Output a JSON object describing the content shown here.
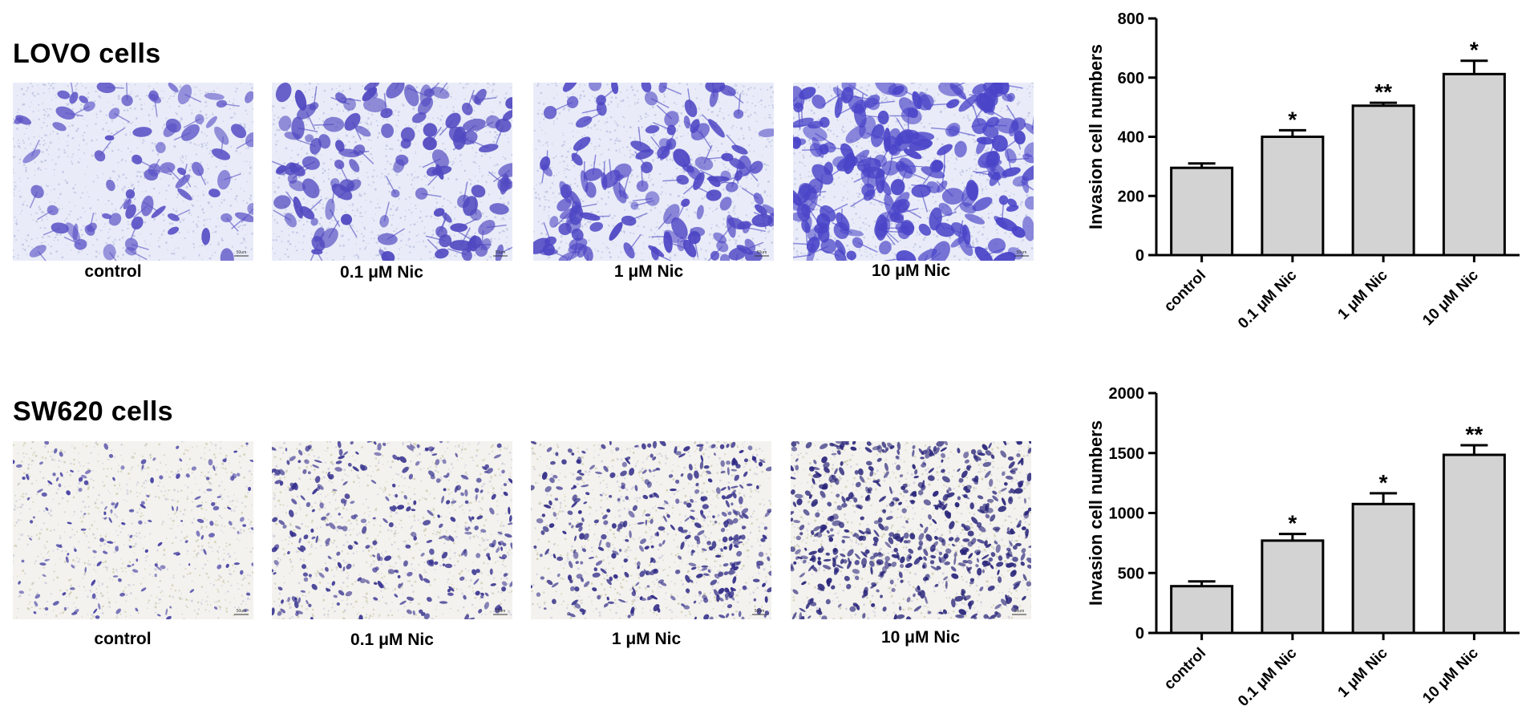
{
  "panels": [
    {
      "title": "LOVO cells",
      "images": [
        {
          "label": "control",
          "scale_label": "50um",
          "density": 70,
          "blob": 9,
          "stain": "#5b52c6"
        },
        {
          "label": "0.1 μM Nic",
          "scale_label": "50um",
          "density": 110,
          "blob": 10,
          "stain": "#5048c0"
        },
        {
          "label": "1 μM Nic",
          "scale_label": "50um",
          "density": 120,
          "blob": 10,
          "stain": "#4e46c4"
        },
        {
          "label": "10 μM Nic",
          "scale_label": "50um",
          "density": 190,
          "blob": 11,
          "stain": "#4a44c8"
        }
      ]
    },
    {
      "title": "SW620 cells",
      "images": [
        {
          "label": "control",
          "scale_label": "50um",
          "density": 160,
          "blob": 3,
          "stain": "#3f3aa0"
        },
        {
          "label": "0.1 μM Nic",
          "scale_label": "50um",
          "density": 300,
          "blob": 3.5,
          "stain": "#37328f"
        },
        {
          "label": "1 μM Nic",
          "scale_label": "50um",
          "density": 380,
          "blob": 3.5,
          "stain": "#2f2a86"
        },
        {
          "label": "10 μM Nic",
          "scale_label": "50um",
          "density": 560,
          "blob": 3.8,
          "stain": "#29257a"
        }
      ]
    }
  ],
  "chart_data": [
    {
      "type": "bar",
      "categories": [
        "control",
        "0.1 μM Nic",
        "1 μM Nic",
        "10 μM Nic"
      ],
      "values": [
        295,
        400,
        505,
        612
      ],
      "errors": [
        15,
        22,
        10,
        45
      ],
      "significance": [
        "",
        "*",
        "**",
        "*"
      ],
      "ylabel": "Invasion cell numbers",
      "ylim": [
        0,
        800
      ],
      "yticks": [
        0,
        200,
        400,
        600,
        800
      ],
      "bar_color": "#d3d3d3"
    },
    {
      "type": "bar",
      "categories": [
        "control",
        "0.1 μM Nic",
        "1 μM Nic",
        "10 μM Nic"
      ],
      "values": [
        390,
        770,
        1075,
        1485
      ],
      "errors": [
        40,
        55,
        90,
        80
      ],
      "significance": [
        "",
        "*",
        "*",
        "**"
      ],
      "ylabel": "Invasion cell numbers",
      "ylim": [
        0,
        2000
      ],
      "yticks": [
        0,
        500,
        1000,
        1500,
        2000
      ],
      "bar_color": "#d3d3d3"
    }
  ]
}
